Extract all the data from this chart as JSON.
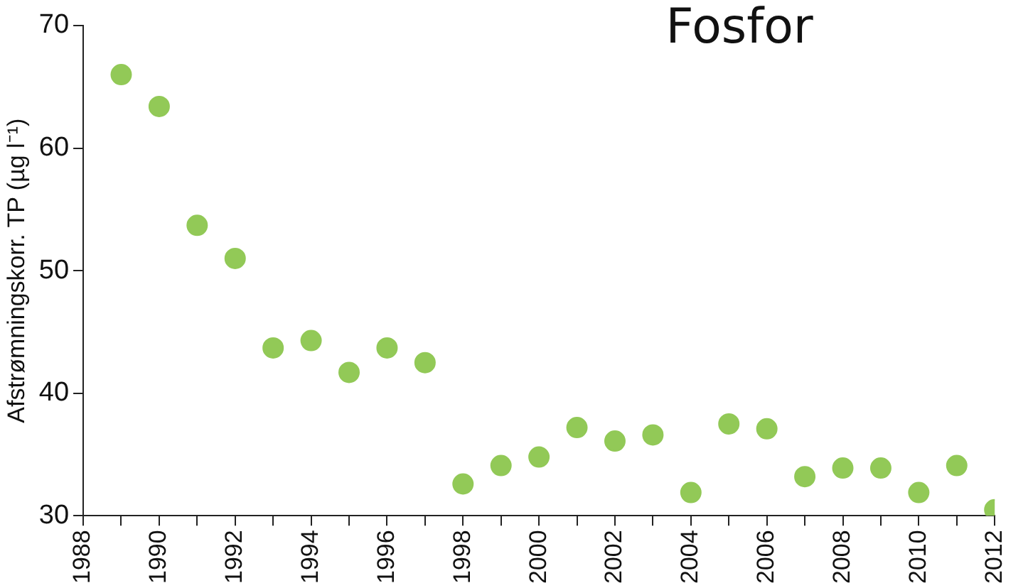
{
  "chart_data": {
    "type": "scatter",
    "title": "Fosfor",
    "ylabel": "Afstrømningskorr. TP (µg l⁻¹)",
    "x": [
      1989,
      1990,
      1991,
      1992,
      1993,
      1994,
      1995,
      1996,
      1997,
      1998,
      1999,
      2000,
      2001,
      2002,
      2003,
      2004,
      2005,
      2006,
      2007,
      2008,
      2009,
      2010,
      2011,
      2012
    ],
    "series": [
      {
        "color": "#92c957",
        "values": [
          66.0,
          63.4,
          53.7,
          51.0,
          43.7,
          44.3,
          41.7,
          43.7,
          42.5,
          32.6,
          34.1,
          34.8,
          37.2,
          36.1,
          36.6,
          31.9,
          37.5,
          37.1,
          33.2,
          33.9,
          33.9,
          31.9,
          34.1,
          30.5
        ]
      }
    ],
    "xlim": [
      1988,
      2012
    ],
    "xticks": [
      1988,
      {
        "value": 1989,
        "label": null
      },
      1990,
      {
        "value": 1991,
        "label": null
      },
      1992,
      {
        "value": 1993,
        "label": null
      },
      1994,
      {
        "value": 1995,
        "label": null
      },
      1996,
      {
        "value": 1997,
        "label": null
      },
      1998,
      {
        "value": 1999,
        "label": null
      },
      2000,
      {
        "value": 2001,
        "label": null
      },
      2002,
      {
        "value": 2003,
        "label": null
      },
      2004,
      {
        "value": 2005,
        "label": null
      },
      2006,
      {
        "value": 2007,
        "label": null
      },
      2008,
      {
        "value": 2009,
        "label": null
      },
      2010,
      {
        "value": 2011,
        "label": null
      },
      2012
    ],
    "ylim": [
      30,
      70
    ],
    "yticks": [
      30,
      40,
      50,
      60,
      70
    ],
    "grid": false,
    "legend": false,
    "marker": "circle"
  }
}
